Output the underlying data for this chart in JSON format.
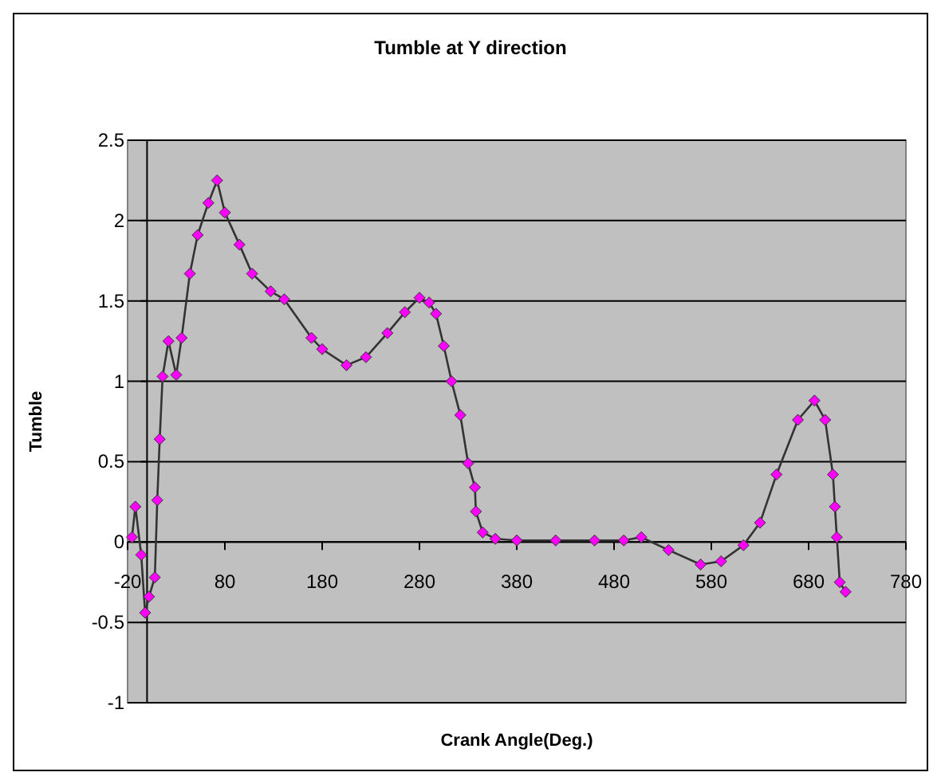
{
  "chart_data": {
    "type": "line",
    "title": "Tumble at Y direction",
    "xlabel": "Crank Angle(Deg.)",
    "ylabel": "Tumble",
    "xlim": [
      -20,
      780
    ],
    "xticks": [
      -20,
      80,
      180,
      280,
      380,
      480,
      580,
      680,
      780
    ],
    "ylim": [
      -1,
      2.5
    ],
    "yticks": [
      -1,
      -0.5,
      0,
      0.5,
      1,
      1.5,
      2,
      2.5
    ],
    "grid": "y",
    "marker": "diamond",
    "line_style": "solid",
    "series": [
      {
        "color": "#ff00ff",
        "x": [
          -15.5,
          -12,
          -6,
          -2,
          2,
          8,
          10.5,
          13,
          16,
          22,
          30,
          35.5,
          44,
          52,
          63,
          72,
          80,
          95,
          108,
          127,
          141,
          169,
          180,
          205,
          225,
          247,
          265,
          280,
          290,
          297,
          305,
          313,
          322,
          330,
          337,
          338,
          345,
          358,
          380,
          420,
          460,
          490,
          508,
          536,
          569,
          590,
          613,
          630,
          647,
          669,
          686,
          697,
          705,
          707,
          709,
          712,
          718
        ],
        "values": [
          0.03,
          0.22,
          -0.08,
          -0.44,
          -0.34,
          -0.22,
          0.26,
          0.64,
          1.03,
          1.25,
          1.04,
          1.27,
          1.67,
          1.91,
          2.11,
          2.25,
          2.05,
          1.85,
          1.67,
          1.56,
          1.51,
          1.27,
          1.2,
          1.1,
          1.15,
          1.3,
          1.43,
          1.52,
          1.49,
          1.42,
          1.22,
          1.0,
          0.79,
          0.49,
          0.34,
          0.19,
          0.06,
          0.02,
          0.01,
          0.01,
          0.01,
          0.01,
          0.03,
          -0.05,
          -0.14,
          -0.12,
          -0.02,
          0.12,
          0.42,
          0.76,
          0.88,
          0.76,
          0.42,
          0.22,
          0.03,
          -0.25,
          -0.31
        ]
      }
    ]
  }
}
